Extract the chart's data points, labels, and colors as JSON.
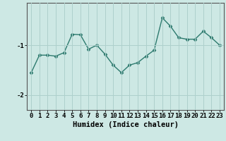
{
  "x": [
    0,
    1,
    2,
    3,
    4,
    5,
    6,
    7,
    8,
    9,
    10,
    11,
    12,
    13,
    14,
    15,
    16,
    17,
    18,
    19,
    20,
    21,
    22,
    23
  ],
  "y": [
    -1.55,
    -1.2,
    -1.2,
    -1.22,
    -1.15,
    -0.78,
    -0.79,
    -1.08,
    -1.0,
    -1.18,
    -1.4,
    -1.55,
    -1.4,
    -1.35,
    -1.22,
    -1.1,
    -0.45,
    -0.62,
    -0.85,
    -0.88,
    -0.88,
    -0.72,
    -0.85,
    -1.0
  ],
  "line_color": "#2d7a6e",
  "marker_color": "#2d7a6e",
  "markersize": 2.5,
  "linewidth": 1.0,
  "bg_color": "#cde8e4",
  "grid_color": "#aed0cc",
  "xlabel": "Humidex (Indice chaleur)",
  "ytick_vals": [
    -2,
    -1
  ],
  "ytick_labels": [
    "-2",
    "-1"
  ],
  "ylim": [
    -2.3,
    -0.15
  ],
  "xlim": [
    -0.5,
    23.5
  ],
  "label_fontsize": 7.5,
  "tick_fontsize": 6.5
}
